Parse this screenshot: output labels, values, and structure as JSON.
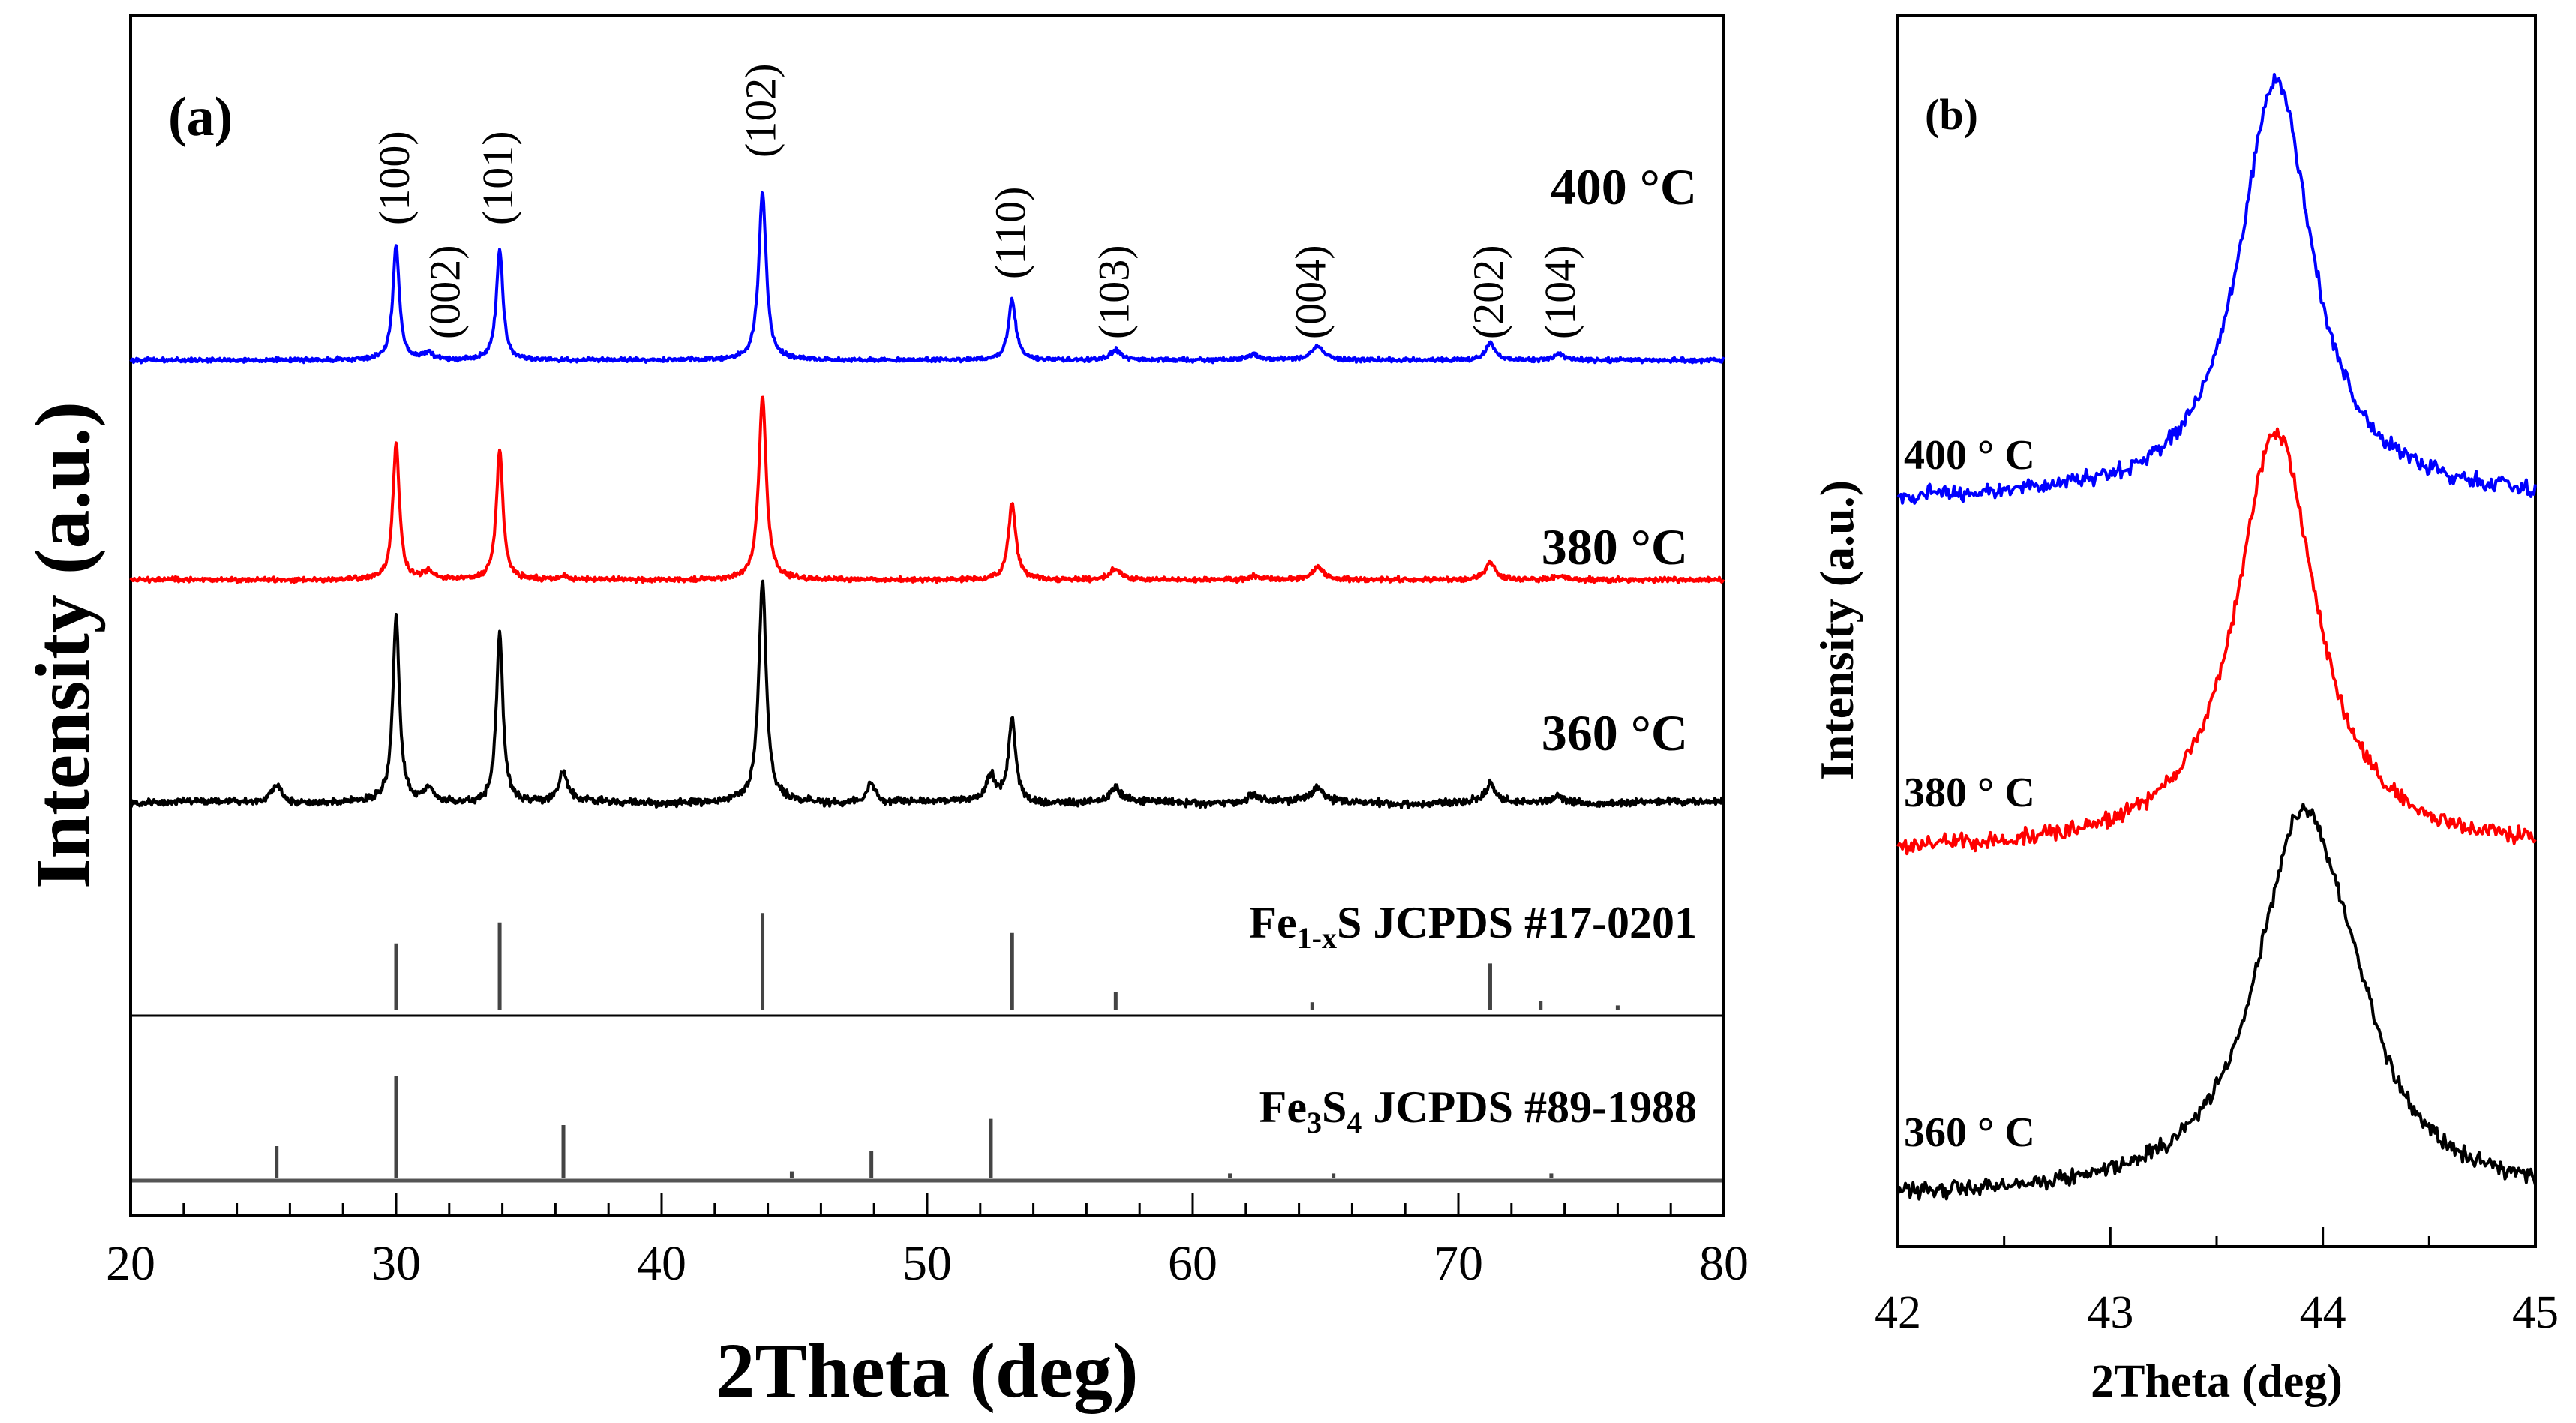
{
  "chart_data": [
    {
      "panel": "a",
      "type": "line",
      "panel_label": "(a)",
      "xlabel": "2Theta (deg)",
      "ylabel": "Intensity (a.u.)",
      "xlim": [
        20,
        80
      ],
      "x_ticks": [
        20,
        30,
        40,
        50,
        60,
        70,
        80
      ],
      "x_tick_labels": [
        "20",
        "30",
        "40",
        "50",
        "60",
        "70",
        "80"
      ],
      "y_ticks_visible": false,
      "peaks": [
        {
          "pos": 25.5,
          "width": 0.35
        },
        {
          "pos": 30.0,
          "width": 0.22
        },
        {
          "pos": 31.2,
          "width": 0.3
        },
        {
          "pos": 33.9,
          "width": 0.22
        },
        {
          "pos": 36.3,
          "width": 0.3
        },
        {
          "pos": 43.8,
          "width": 0.25
        },
        {
          "pos": 47.9,
          "width": 0.3
        },
        {
          "pos": 52.4,
          "width": 0.3
        },
        {
          "pos": 53.2,
          "width": 0.25
        },
        {
          "pos": 57.1,
          "width": 0.35
        },
        {
          "pos": 62.3,
          "width": 0.4
        },
        {
          "pos": 64.7,
          "width": 0.4
        },
        {
          "pos": 71.2,
          "width": 0.3
        },
        {
          "pos": 73.8,
          "width": 0.4
        }
      ],
      "series": [
        {
          "name": "400 °C",
          "label": "400 °C",
          "color": "#0000ff",
          "baseline": 0.0,
          "noise": 1.2,
          "amplitudes": [
            0,
            65,
            4,
            63,
            0,
            95,
            0,
            0,
            34,
            6,
            3,
            8,
            10,
            3
          ]
        },
        {
          "name": "380 °C",
          "label": "380 °C",
          "color": "#ff0000",
          "baseline": 0.0,
          "noise": 1.3,
          "amplitudes": [
            0,
            74,
            4,
            71,
            2,
            100,
            0,
            0,
            42,
            6,
            2,
            7,
            10,
            2
          ]
        },
        {
          "name": "360 °C",
          "label": "360 °C",
          "color": "#000000",
          "baseline": 0.0,
          "noise": 1.6,
          "amplitudes": [
            8,
            83,
            6,
            77,
            13,
            100,
            9,
            12,
            38,
            6,
            4,
            6,
            8,
            3
          ]
        }
      ],
      "miller_indices": [
        {
          "label": "(100)",
          "x": 30.0
        },
        {
          "label": "(002)",
          "x": 31.9
        },
        {
          "label": "(101)",
          "x": 33.9
        },
        {
          "label": "(102)",
          "x": 43.8
        },
        {
          "label": "(110)",
          "x": 53.2
        },
        {
          "label": "(103)",
          "x": 57.1
        },
        {
          "label": "(004)",
          "x": 64.5
        },
        {
          "label": "(202)",
          "x": 71.2
        },
        {
          "label": "(104)",
          "x": 73.9
        }
      ],
      "references": [
        {
          "label_main": "Fe",
          "label_sub": "1-x",
          "label_rest": "S JCPDS #17-0201",
          "sticks": [
            {
              "x": 30.0,
              "h": 63
            },
            {
              "x": 33.9,
              "h": 83
            },
            {
              "x": 43.8,
              "h": 92
            },
            {
              "x": 53.2,
              "h": 73
            },
            {
              "x": 57.1,
              "h": 17
            },
            {
              "x": 64.5,
              "h": 7
            },
            {
              "x": 71.2,
              "h": 44
            },
            {
              "x": 73.1,
              "h": 8
            },
            {
              "x": 76.0,
              "h": 4
            }
          ]
        },
        {
          "label_main": "Fe",
          "label_sub": "3",
          "label_rest": "S",
          "label_sub2": "4",
          "label_rest2": " JCPDS #89-1988",
          "sticks": [
            {
              "x": 25.5,
              "h": 30
            },
            {
              "x": 30.0,
              "h": 97
            },
            {
              "x": 36.3,
              "h": 50
            },
            {
              "x": 44.9,
              "h": 6
            },
            {
              "x": 47.9,
              "h": 25
            },
            {
              "x": 52.4,
              "h": 56
            },
            {
              "x": 61.4,
              "h": 4
            },
            {
              "x": 65.3,
              "h": 4
            },
            {
              "x": 73.5,
              "h": 4
            }
          ]
        }
      ]
    },
    {
      "panel": "b",
      "type": "line",
      "panel_label": "(b)",
      "xlabel": "2Theta (deg)",
      "ylabel": "Intensity (a.u.)",
      "xlim": [
        42,
        45
      ],
      "x_ticks": [
        42,
        43,
        44,
        45
      ],
      "x_tick_labels": [
        "42",
        "43",
        "44",
        "45"
      ],
      "y_ticks_visible": false,
      "series": [
        {
          "name": "400 ° C",
          "label": "400 ° C",
          "color": "#0000ff",
          "center": 43.78,
          "fwhm": 0.42,
          "height": 100
        },
        {
          "name": "380 ° C",
          "label": "380 ° C",
          "color": "#ff0000",
          "center": 43.78,
          "fwhm": 0.46,
          "height": 100
        },
        {
          "name": "360 ° C",
          "label": "360 ° C",
          "color": "#000000",
          "center": 43.9,
          "fwhm": 0.52,
          "height": 100
        }
      ]
    }
  ]
}
